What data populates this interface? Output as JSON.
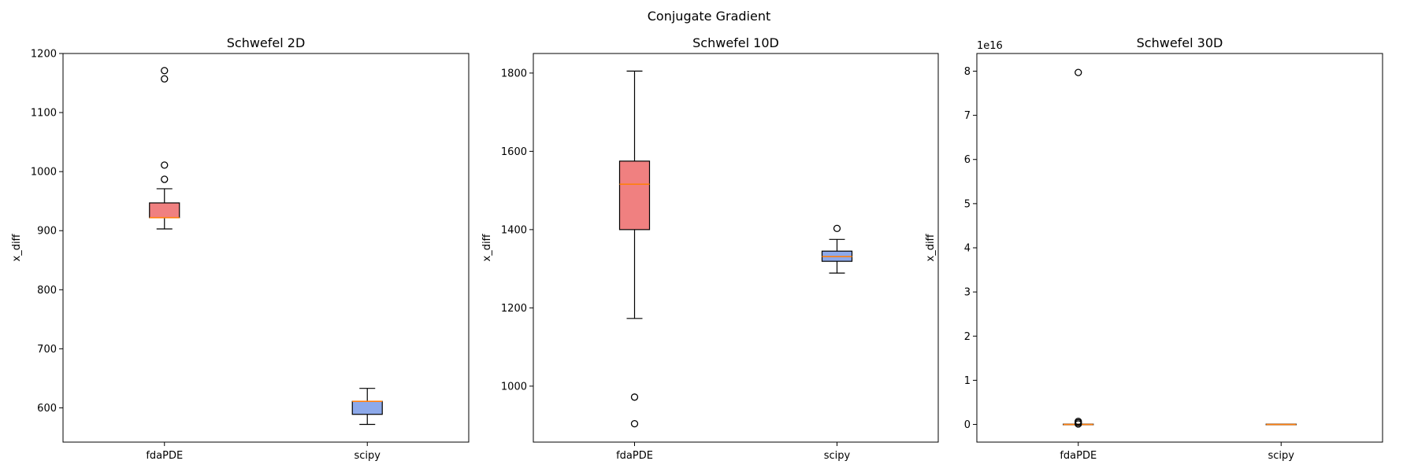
{
  "figure": {
    "suptitle": "Conjugate Gradient"
  },
  "colors": {
    "fdaPDE_box": "#f08080",
    "scipy_box": "#8da9ea",
    "median": "#ff7f0e",
    "edge": "#000000"
  },
  "chart_data": [
    {
      "type": "box",
      "title": "Schwefel 2D",
      "xlabel": "",
      "ylabel": "x_diff",
      "categories": [
        "fdaPDE",
        "scipy"
      ],
      "ylim": [
        542,
        1200
      ],
      "yticks": [
        600,
        700,
        800,
        900,
        1000,
        1100,
        1200
      ],
      "offset_text": "",
      "boxes": [
        {
          "name": "fdaPDE",
          "whislo": 903,
          "q1": 922,
          "med": 922,
          "q3": 947,
          "whishi": 971,
          "fliers": [
            987,
            1011,
            1157,
            1171
          ]
        },
        {
          "name": "scipy",
          "whislo": 572,
          "q1": 589,
          "med": 611,
          "q3": 611,
          "whishi": 633,
          "fliers": []
        }
      ]
    },
    {
      "type": "box",
      "title": "Schwefel 10D",
      "xlabel": "",
      "ylabel": "x_diff",
      "categories": [
        "fdaPDE",
        "scipy"
      ],
      "ylim": [
        857,
        1850
      ],
      "yticks": [
        1000,
        1200,
        1400,
        1600,
        1800
      ],
      "offset_text": "",
      "boxes": [
        {
          "name": "fdaPDE",
          "whislo": 1173,
          "q1": 1400,
          "med": 1516,
          "q3": 1575,
          "whishi": 1805,
          "fliers": [
            904,
            972
          ]
        },
        {
          "name": "scipy",
          "whislo": 1289,
          "q1": 1319,
          "med": 1331,
          "q3": 1345,
          "whishi": 1375,
          "fliers": [
            1403
          ]
        }
      ]
    },
    {
      "type": "box",
      "title": "Schwefel 30D",
      "xlabel": "",
      "ylabel": "x_diff",
      "categories": [
        "fdaPDE",
        "scipy"
      ],
      "ylim": [
        -0.4,
        8.4
      ],
      "yticks": [
        0,
        1,
        2,
        3,
        4,
        5,
        6,
        7,
        8
      ],
      "offset_text": "1e16",
      "boxes": [
        {
          "name": "fdaPDE",
          "whislo": 0,
          "q1": 0,
          "med": 0,
          "q3": 0,
          "whishi": 0,
          "fliers": [
            0.01,
            0.04,
            0.07,
            7.97
          ]
        },
        {
          "name": "scipy",
          "whislo": 0,
          "q1": 0,
          "med": 0,
          "q3": 0,
          "whishi": 0,
          "fliers": []
        }
      ]
    }
  ]
}
